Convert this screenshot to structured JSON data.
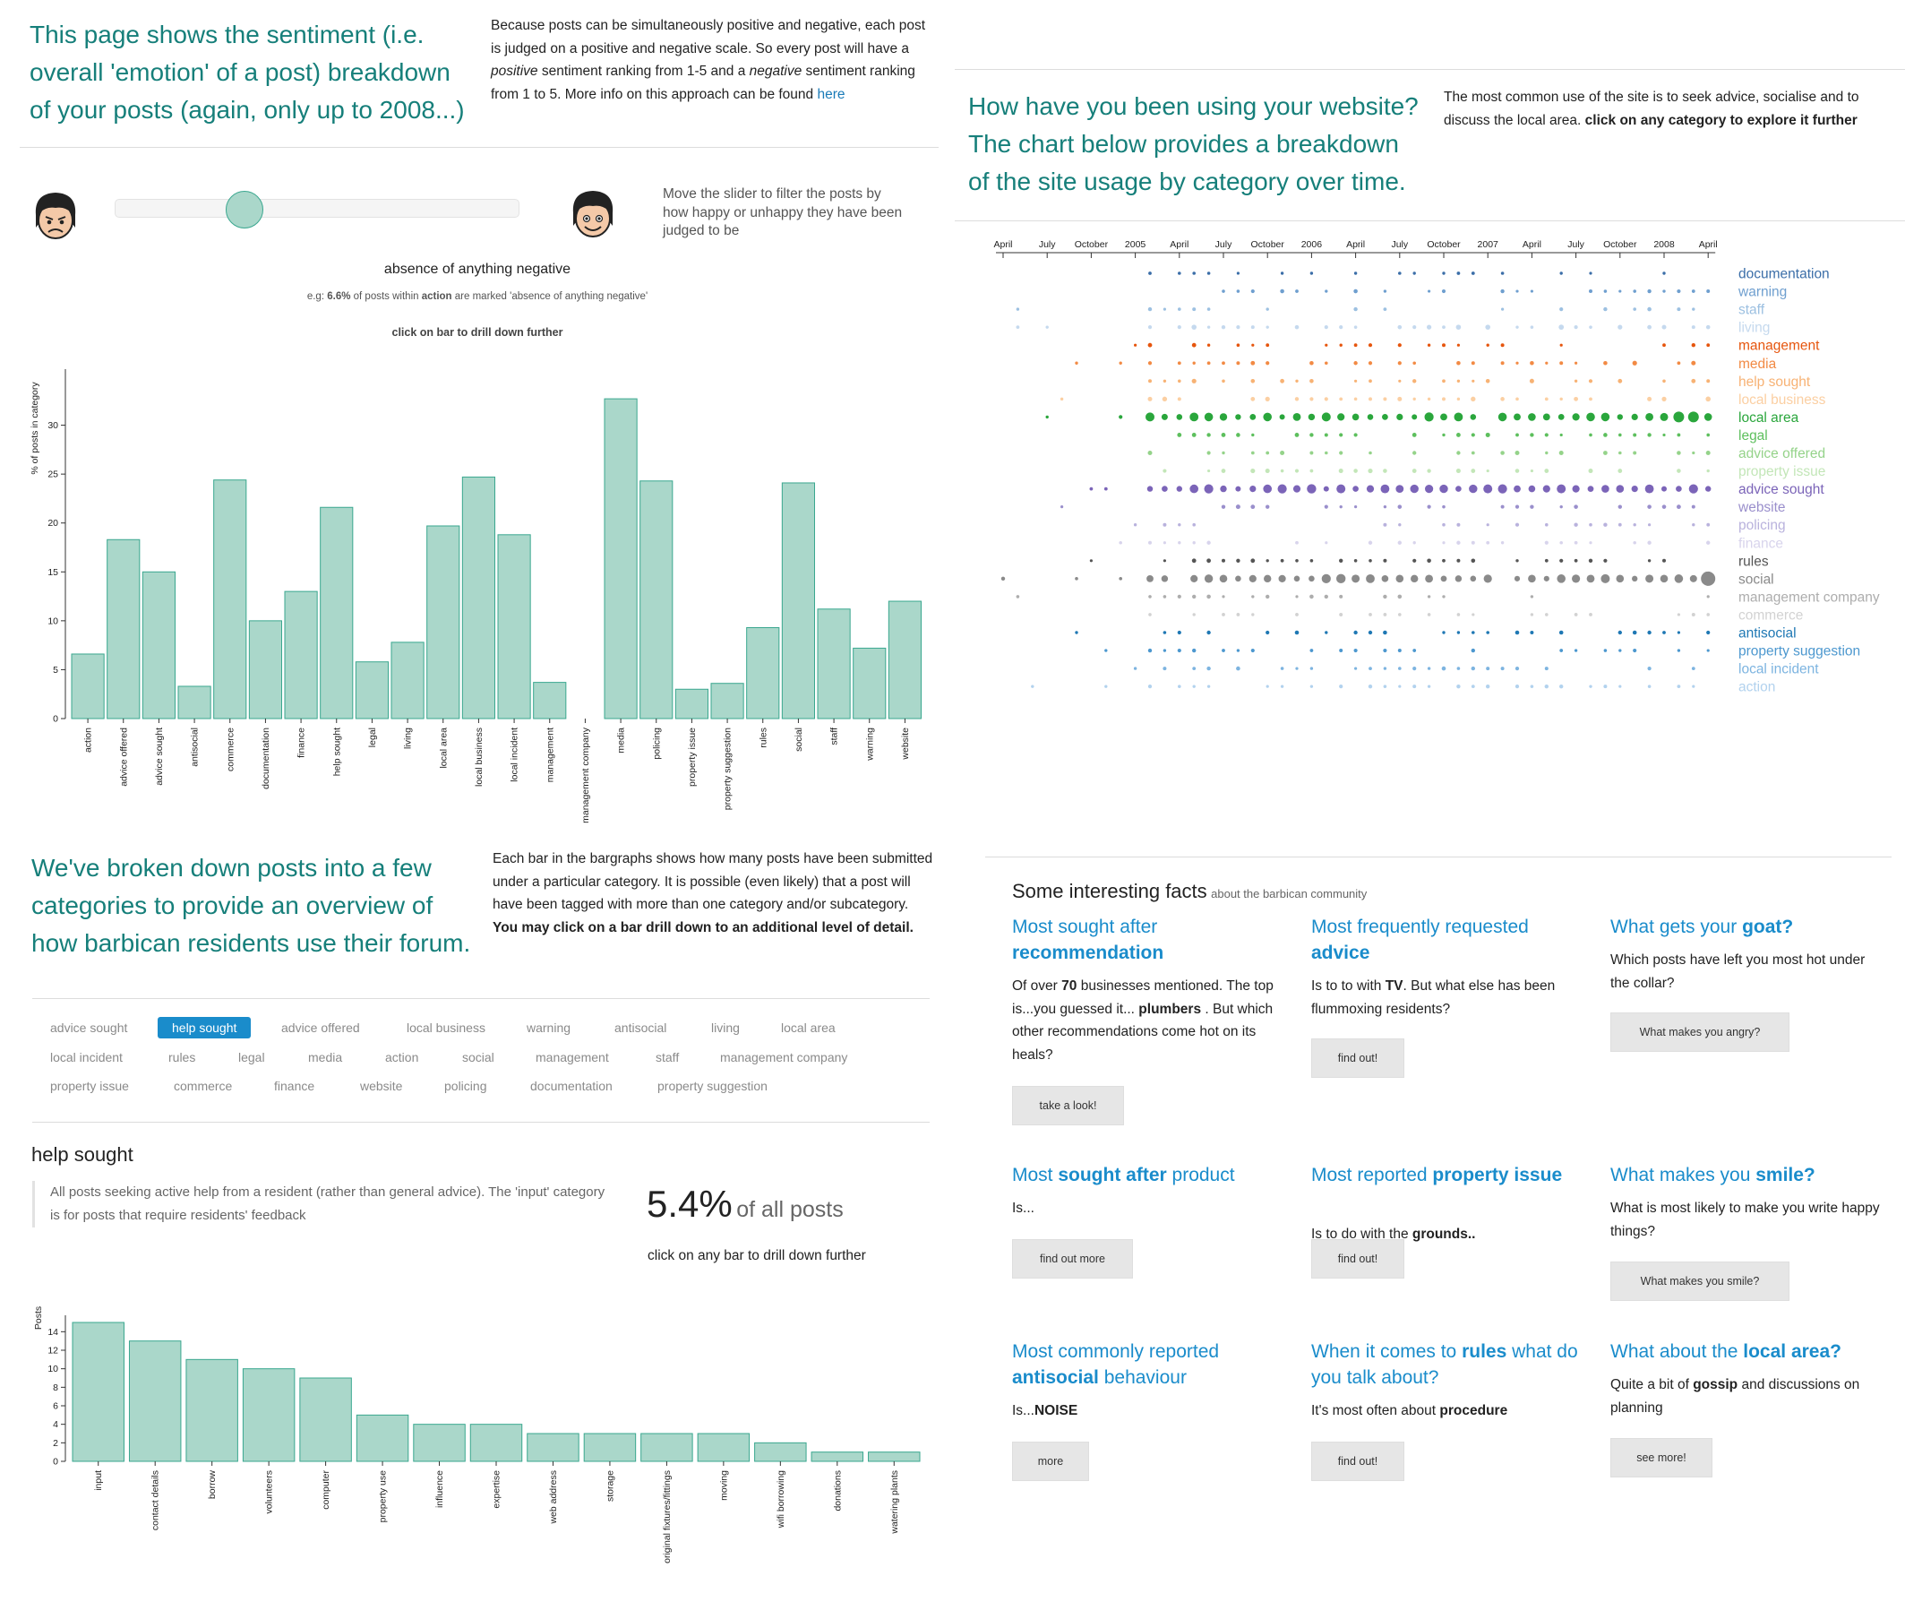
{
  "left_intro": {
    "headline": "This page shows the sentiment (i.e. overall 'emotion' of a post) breakdown of your posts (again, only up to 2008...)",
    "para_1": "Because posts can be simultaneously positive and negative, each post is judged on a positive and negative scale. So every post will have a ",
    "para_positive": "positive",
    "para_2": " sentiment ranking from 1-5 and a ",
    "para_negative": "negative",
    "para_3": " sentiment ranking from 1 to 5. More info on this approach can be found ",
    "para_link": "here"
  },
  "slider": {
    "hint": "Move the slider to filter the posts by how happy or unhappy they have been judged to be",
    "level": 0.32,
    "sad_face_icon": "sad-face-icon",
    "happy_face_icon": "happy-face-icon"
  },
  "sentiment_chart": {
    "heading": "absence of anything negative",
    "eg_prefix": "e.g: ",
    "eg_pct": "6.6%",
    "eg_mid": " of posts within ",
    "eg_cat": "action",
    "eg_suffix": " are marked 'absence of anything negative'",
    "drill_hint": "click on bar to drill down further"
  },
  "middle_intro": {
    "headline": "We've broken down posts into a few categories to provide an overview of how barbican residents use their forum.",
    "para": "Each bar in the bargraphs shows how many posts have been submitted under a particular category. It is possible (even likely) that a post will have been tagged with more than one category and/or subcategory. ",
    "para_bold": "You may click on a bar drill down to an additional level of detail."
  },
  "tags": {
    "selected": "help sought",
    "rows": [
      [
        "advice sought",
        "help sought",
        "advice offered",
        "local business",
        "warning",
        "antisocial",
        "living",
        "local area"
      ],
      [
        "local incident",
        "rules",
        "legal",
        "media",
        "action",
        "social",
        "management",
        "staff",
        "management company"
      ],
      [
        "property issue",
        "commerce",
        "finance",
        "website",
        "policing",
        "documentation",
        "property suggestion"
      ]
    ]
  },
  "detail": {
    "title": "help sought",
    "description": "All posts seeking active help from a resident (rather than general advice). The 'input' category is for posts that require residents' feedback",
    "pct": "5.4%",
    "pct_suffix": "of all posts",
    "drill_hint": "click on any bar to drill down further"
  },
  "right_intro": {
    "headline": "How have you been using your website? The chart below provides a breakdown of the site usage by category over time.",
    "para": "The most common use of the site is to seek advice, socialise and to discuss the local area. ",
    "para_bold": "click on any category to explore it further"
  },
  "facts": {
    "heading": "Some interesting facts",
    "subheading": "about the barbican community",
    "items": [
      {
        "t1": "Most sought after ",
        "tb": "recommendation",
        "t2": "",
        "b1": "Of over ",
        "bb": "70",
        "b2": " businesses mentioned. The top is...you guessed it... ",
        "bb2": "plumbers",
        "b3": " . But which other recommendations come hot on its heals?",
        "btn": "take a look!"
      },
      {
        "t1": "Most frequently requested ",
        "tb": "advice",
        "t2": "",
        "b1": "Is to to with ",
        "bb": "TV",
        "b2": ". But what else has been flummoxing residents?",
        "bb2": "",
        "b3": "",
        "btn": "find out!"
      },
      {
        "t1": "What gets your ",
        "tb": "goat?",
        "t2": "",
        "b1": "Which posts have left you most hot under the collar?",
        "bb": "",
        "b2": "",
        "bb2": "",
        "b3": "",
        "btn": "What makes you angry?"
      },
      {
        "t1": "Most ",
        "tb": "sought after",
        "t2": " product",
        "b1": "Is...",
        "bb": "",
        "b2": "",
        "bb2": "",
        "b3": "",
        "btn": "find out more"
      },
      {
        "t1": "Most reported ",
        "tb": "property issue",
        "t2": "",
        "b1": "Is to do with the ",
        "bb": "grounds..",
        "b2": "",
        "bb2": "",
        "b3": "",
        "btn": "find out!"
      },
      {
        "t1": "What makes you ",
        "tb": "smile?",
        "t2": "",
        "b1": "What is most likely to make you write happy things?",
        "bb": "",
        "b2": "",
        "bb2": "",
        "b3": "",
        "btn": "What makes you smile?"
      },
      {
        "t1": "Most commonly reported ",
        "tb": "antisocial",
        "t2": " behaviour",
        "b1": "Is...",
        "bb": "NOISE",
        "b2": "",
        "bb2": "",
        "b3": "",
        "btn": "more"
      },
      {
        "t1": "When it comes to ",
        "tb": "rules",
        "t2": " what do you talk about?",
        "b1": "It's most often about ",
        "bb": "procedure",
        "b2": "",
        "bb2": "",
        "b3": "",
        "btn": "find out!"
      },
      {
        "t1": "What about the ",
        "tb": "local area?",
        "t2": "",
        "b1": "Quite a bit of ",
        "bb": "gossip",
        "b2": " and discussions on planning",
        "bb2": "",
        "b3": "",
        "btn": "see more!"
      }
    ]
  },
  "colors": {
    "bar_fill": "#aad7ca",
    "bar_stroke": "#3aa78f",
    "accent": "#1a8ccb",
    "teal_heading": "#167f7a"
  },
  "chart_data": [
    {
      "type": "bar",
      "title": "absence of anything negative",
      "ylabel": "% of posts in category",
      "ylim": [
        0,
        35
      ],
      "yticks": [
        0,
        5,
        10,
        15,
        20,
        25,
        30
      ],
      "categories": [
        "action",
        "advice offered",
        "advice sought",
        "antisocial",
        "commerce",
        "documentation",
        "finance",
        "help sought",
        "legal",
        "living",
        "local area",
        "local business",
        "local incident",
        "management",
        "management company",
        "media",
        "policing",
        "property issue",
        "property suggestion",
        "rules",
        "social",
        "staff",
        "warning",
        "website"
      ],
      "values": [
        6.6,
        18.3,
        15.0,
        3.3,
        24.4,
        10.0,
        13.0,
        21.6,
        5.8,
        7.8,
        19.7,
        24.7,
        18.8,
        3.7,
        0,
        32.7,
        24.3,
        3.0,
        3.6,
        9.3,
        24.1,
        11.2,
        7.2,
        12.0
      ]
    },
    {
      "type": "bar",
      "title": "help sought",
      "ylabel": "Posts",
      "ylim": [
        0,
        15
      ],
      "yticks": [
        0,
        2,
        4,
        6,
        8,
        10,
        12,
        14
      ],
      "categories": [
        "input",
        "contact details",
        "borrow",
        "volunteers",
        "computer",
        "property use",
        "influence",
        "expertise",
        "web address",
        "storage",
        "original fixtures/fittings",
        "moving",
        "wifi borrowing",
        "donations",
        "watering plants"
      ],
      "values": [
        15,
        13,
        11,
        10,
        9,
        5,
        4,
        4,
        3,
        3,
        3,
        3,
        2,
        1,
        1
      ]
    },
    {
      "type": "scatter",
      "title": "site usage by category over time",
      "x_ticks": [
        "April",
        "July",
        "October",
        "2005",
        "April",
        "July",
        "October",
        "2006",
        "April",
        "July",
        "October",
        "2007",
        "April",
        "July",
        "October",
        "2008",
        "April"
      ],
      "x_range": [
        "2004-04",
        "2008-04"
      ],
      "series": [
        {
          "name": "documentation",
          "color": "#3b6ea8"
        },
        {
          "name": "warning",
          "color": "#6f9fcf"
        },
        {
          "name": "staff",
          "color": "#9cc0e1"
        },
        {
          "name": "living",
          "color": "#c5d9ee"
        },
        {
          "name": "management",
          "color": "#e6550d"
        },
        {
          "name": "media",
          "color": "#f28a44"
        },
        {
          "name": "help sought",
          "color": "#f7b274"
        },
        {
          "name": "local business",
          "color": "#fbcfa2"
        },
        {
          "name": "local area",
          "color": "#2aa63c"
        },
        {
          "name": "legal",
          "color": "#5dbf5d"
        },
        {
          "name": "advice offered",
          "color": "#95d38a"
        },
        {
          "name": "property issue",
          "color": "#c3e6b8"
        },
        {
          "name": "advice sought",
          "color": "#7b64b8"
        },
        {
          "name": "website",
          "color": "#9a8fcc"
        },
        {
          "name": "policing",
          "color": "#b9b2dd"
        },
        {
          "name": "finance",
          "color": "#d8d4ec"
        },
        {
          "name": "rules",
          "color": "#555555"
        },
        {
          "name": "social",
          "color": "#8a8a8a"
        },
        {
          "name": "management company",
          "color": "#adadad"
        },
        {
          "name": "commerce",
          "color": "#d2d2d2"
        },
        {
          "name": "antisocial",
          "color": "#1f78b4"
        },
        {
          "name": "property suggestion",
          "color": "#4d98cf"
        },
        {
          "name": "local incident",
          "color": "#7db4e0"
        },
        {
          "name": "action",
          "color": "#b2d2ee"
        }
      ]
    }
  ]
}
